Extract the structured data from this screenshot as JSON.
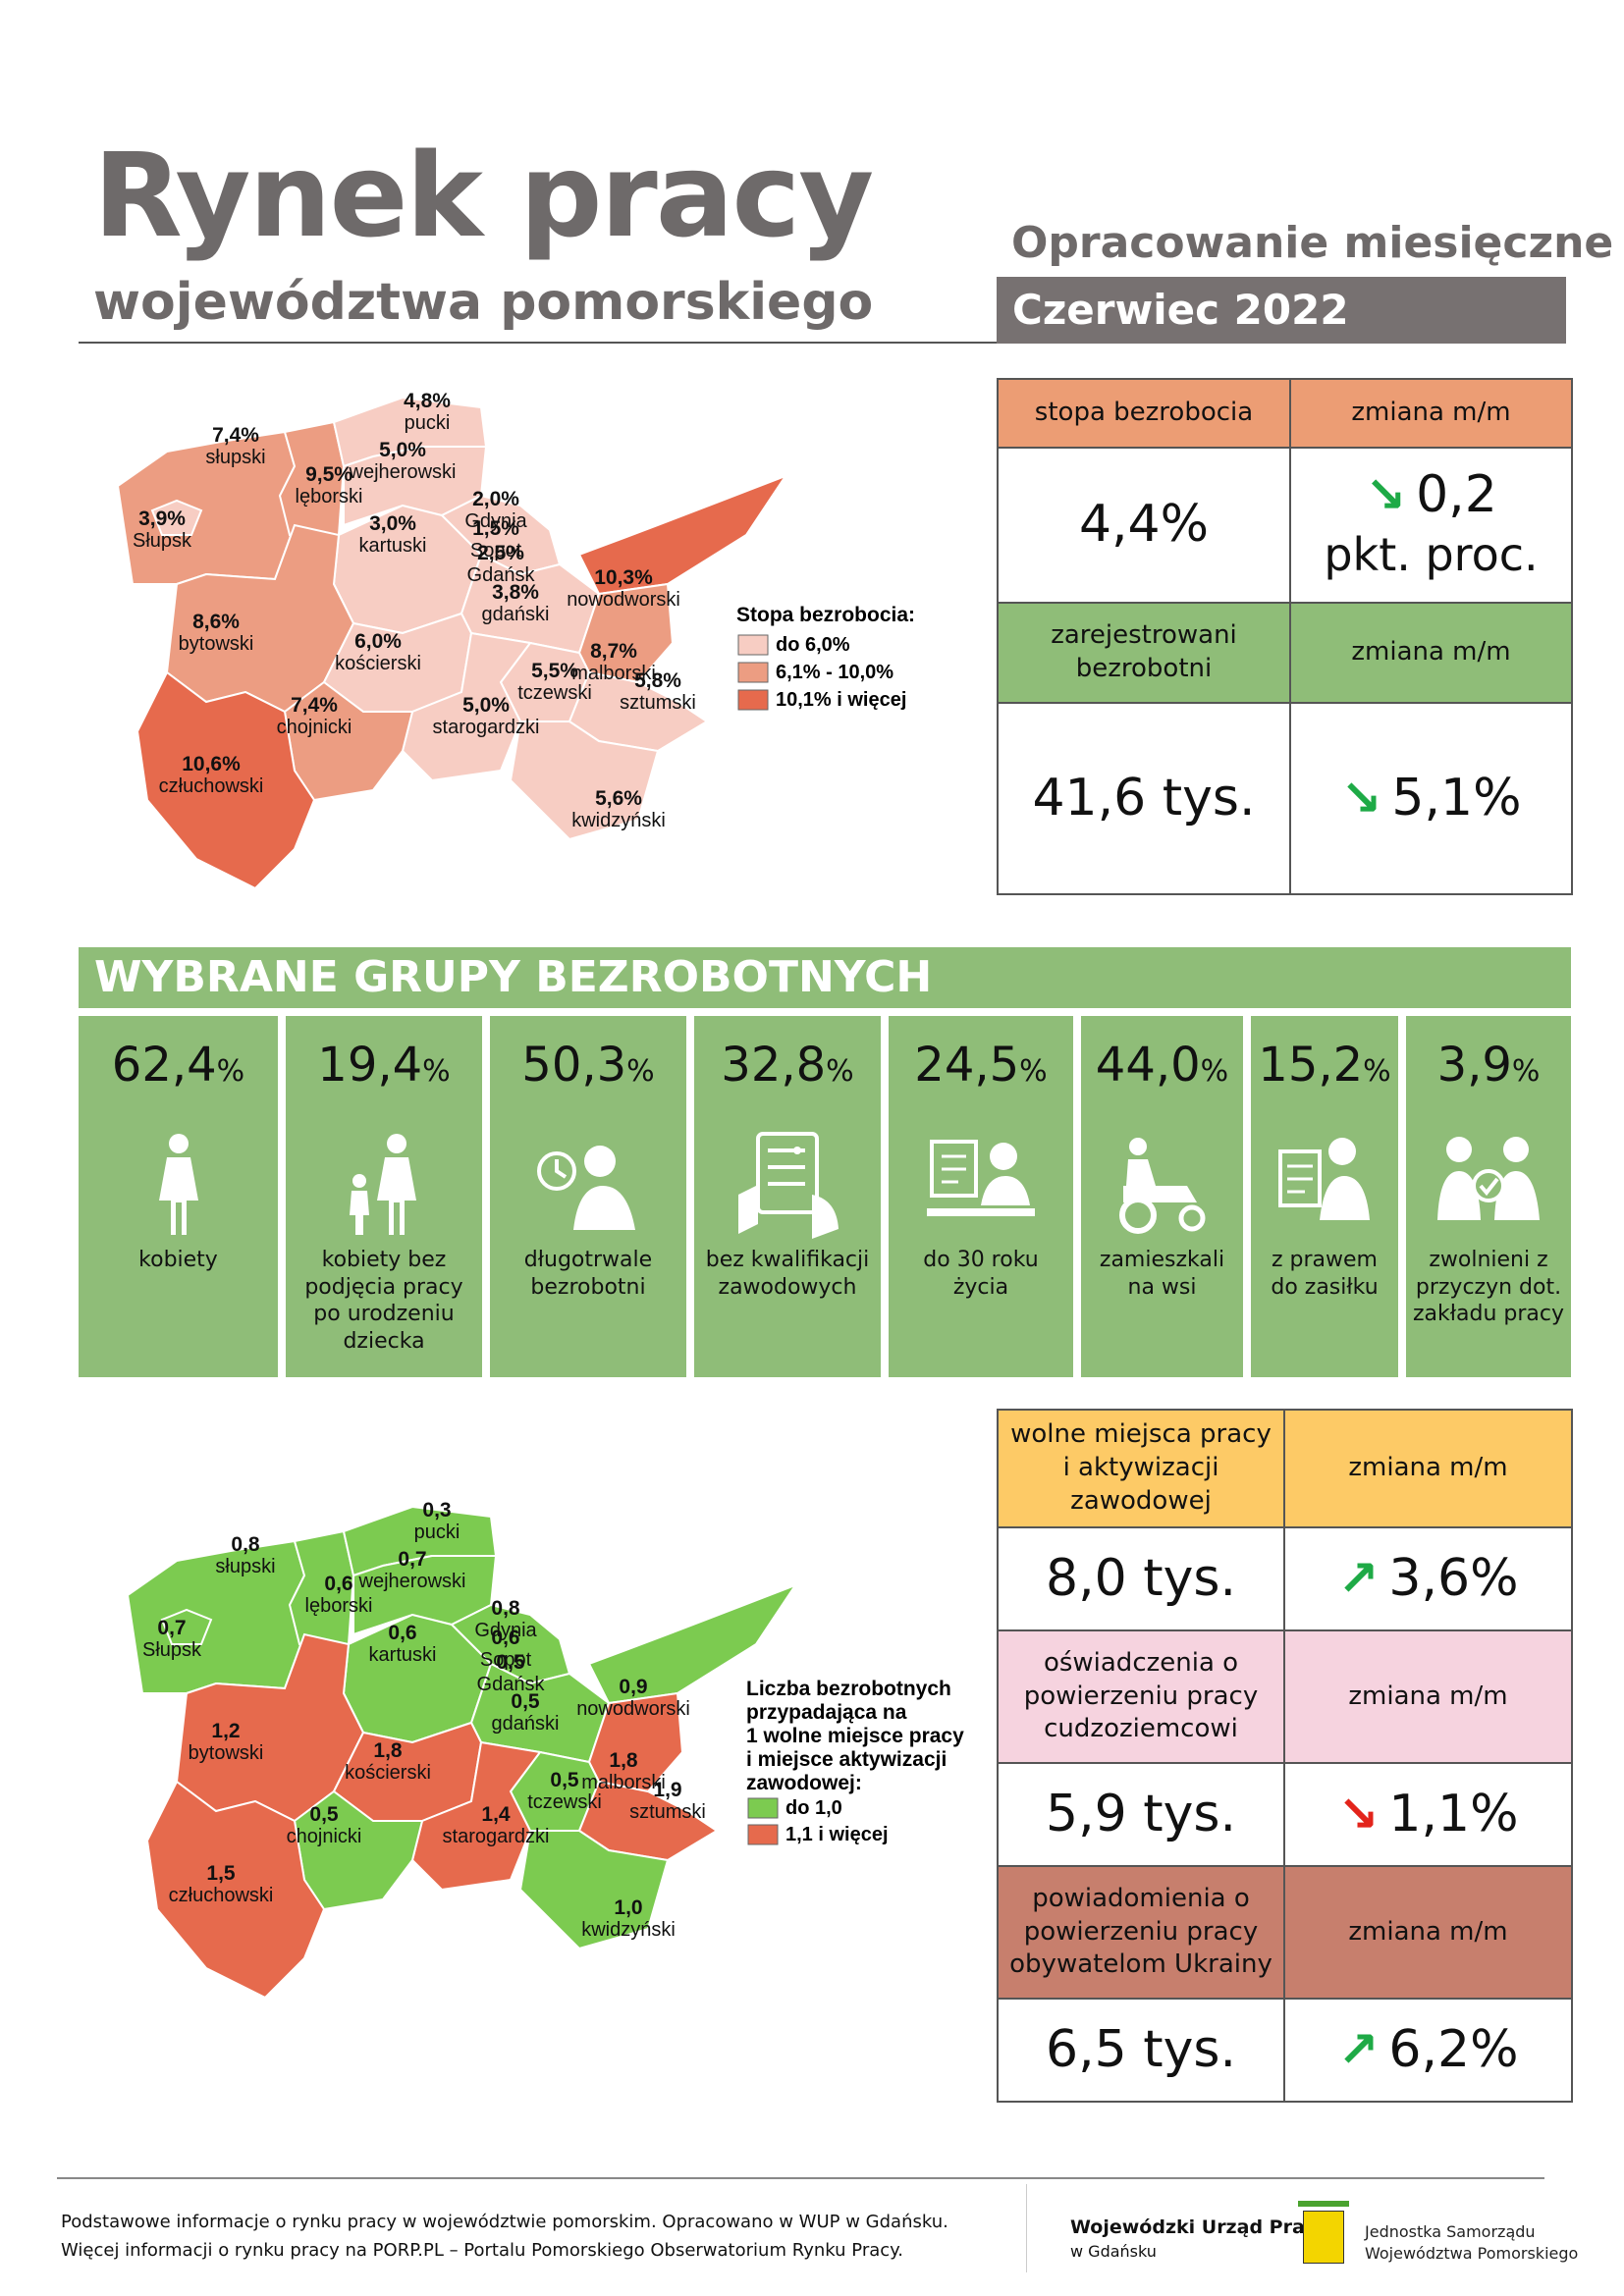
{
  "header": {
    "title": "Rynek pracy",
    "subtitle": "województwa pomorskiego",
    "report_type": "Opracowanie miesięczne",
    "period": "Czerwiec 2022"
  },
  "colors": {
    "orange_header": "#ec9d74",
    "green": "#8fbd78",
    "yellow": "#fdca66",
    "pink": "#f6d3df",
    "brown": "#c77f6d",
    "map_light": "#f7cdc3",
    "map_mid": "#ec9d82",
    "map_dark": "#e66a4d",
    "map_green": "#7ccb50",
    "map_red": "#e66a4d"
  },
  "unemployment": {
    "rate_label": "stopa bezrobocia",
    "change_label": "zmiana m/m",
    "rate_value": "4,4%",
    "rate_change": "0,2",
    "rate_change_unit": "pkt. proc.",
    "rate_change_dir": "down",
    "registered_label": "zarejestrowani bezrobotni",
    "registered_change_label": "zmiana m/m",
    "registered_value": "41,6 tys.",
    "registered_change": "5,1%",
    "registered_change_dir": "down"
  },
  "groups_title": "WYBRANE GRUPY BEZROBOTNYCH",
  "groups": [
    {
      "value": "62,4",
      "unit": "%",
      "label": "kobiety",
      "icon": "woman-icon"
    },
    {
      "value": "19,4",
      "unit": "%",
      "label": "kobiety bez podjęcia pracy po urodzeniu dziecka",
      "icon": "mother-child-icon"
    },
    {
      "value": "50,3",
      "unit": "%",
      "label": "długotrwale bezrobotni",
      "icon": "clock-person-icon"
    },
    {
      "value": "32,8",
      "unit": "%",
      "label": "bez kwalifikacji zawodowych",
      "icon": "checklist-hand-icon"
    },
    {
      "value": "24,5",
      "unit": "%",
      "label": "do 30 roku życia",
      "icon": "young-person-computer-icon"
    },
    {
      "value": "44,0",
      "unit": "%",
      "label": "zamieszkali na wsi",
      "icon": "tractor-icon"
    },
    {
      "value": "15,2",
      "unit": "%",
      "label": "z prawem do zasiłku",
      "icon": "benefit-document-icon"
    },
    {
      "value": "3,9",
      "unit": "%",
      "label": "zwolnieni z przyczyn dot. zakładu pracy",
      "icon": "dismissed-workers-icon"
    }
  ],
  "map1": {
    "legend_title": "Stopa bezrobocia:",
    "legend": [
      "do 6,0%",
      "6,1% - 10,0%",
      "10,1% i więcej"
    ],
    "labels": [
      {
        "value": "4,8%",
        "name": "pucki"
      },
      {
        "value": "7,4%",
        "name": "słupski"
      },
      {
        "value": "5,0%",
        "name": "wejherowski"
      },
      {
        "value": "9,5%",
        "name": "lęborski"
      },
      {
        "value": "3,9%",
        "name": "Słupsk"
      },
      {
        "value": "2,0%",
        "name": "Gdynia"
      },
      {
        "value": "1,5%",
        "name": "Sopot"
      },
      {
        "value": "2,5%",
        "name": "Gdańsk"
      },
      {
        "value": "3,0%",
        "name": "kartuski"
      },
      {
        "value": "10,3%",
        "name": "nowodworski"
      },
      {
        "value": "8,6%",
        "name": "bytowski"
      },
      {
        "value": "3,8%",
        "name": "gdański"
      },
      {
        "value": "6,0%",
        "name": "kościerski"
      },
      {
        "value": "8,7%",
        "name": "malborski"
      },
      {
        "value": "5,5%",
        "name": "tczewski"
      },
      {
        "value": "5,8%",
        "name": "sztumski"
      },
      {
        "value": "7,4%",
        "name": "chojnicki"
      },
      {
        "value": "5,0%",
        "name": "starogardzki"
      },
      {
        "value": "10,6%",
        "name": "człuchowski"
      },
      {
        "value": "5,6%",
        "name": "kwidzyński"
      }
    ]
  },
  "map2": {
    "legend_title_lines": [
      "Liczba bezrobotnych",
      "przypadająca na",
      "1 wolne miejsce pracy",
      "i miejsce aktywizacji",
      "zawodowej:"
    ],
    "legend": [
      "do 1,0",
      "1,1 i więcej"
    ],
    "labels": [
      {
        "value": "0,3",
        "name": "pucki"
      },
      {
        "value": "0,8",
        "name": "słupski"
      },
      {
        "value": "0,7",
        "name": "wejherowski"
      },
      {
        "value": "0,6",
        "name": "lęborski"
      },
      {
        "value": "0,7",
        "name": "Słupsk"
      },
      {
        "value": "0,8",
        "name": "Gdynia"
      },
      {
        "value": "0,6",
        "name": "Sopot"
      },
      {
        "value": "0,5",
        "name": "Gdańsk"
      },
      {
        "value": "0,6",
        "name": "kartuski"
      },
      {
        "value": "0,9",
        "name": "nowodworski"
      },
      {
        "value": "1,2",
        "name": "bytowski"
      },
      {
        "value": "0,5",
        "name": "gdański"
      },
      {
        "value": "1,8",
        "name": "kościerski"
      },
      {
        "value": "1,8",
        "name": "malborski"
      },
      {
        "value": "0,5",
        "name": "tczewski"
      },
      {
        "value": "1,9",
        "name": "sztumski"
      },
      {
        "value": "0,5",
        "name": "chojnicki"
      },
      {
        "value": "1,4",
        "name": "starogardzki"
      },
      {
        "value": "1,5",
        "name": "człuchowski"
      },
      {
        "value": "1,0",
        "name": "kwidzyński"
      }
    ]
  },
  "offers": {
    "vacancies_label": "wolne miejsca pracy i aktywizacji zawodowej",
    "change_label": "zmiana m/m",
    "vacancies_value": "8,0 tys.",
    "vacancies_change": "3,6%",
    "vacancies_dir": "up",
    "declarations_label": "oświadczenia o powierzeniu pracy cudzoziemcowi",
    "declarations_change_label": "zmiana m/m",
    "declarations_value": "5,9 tys.",
    "declarations_change": "1,1%",
    "declarations_dir": "down",
    "notifications_label": "powiadomienia o powierzeniu pracy obywatelom Ukrainy",
    "notifications_change_label": "zmiana m/m",
    "notifications_value": "6,5 tys.",
    "notifications_change": "6,2%",
    "notifications_dir": "up"
  },
  "footer": {
    "line1": "Podstawowe informacje o rynku pracy w województwie pomorskim. Opracowano w WUP w Gdańsku.",
    "line2": "Więcej informacji o rynku pracy na PORP.PL – Portalu Pomorskiego Obserwatorium Rynku Pracy.",
    "wup_name": "Wojewódzki Urząd Pracy",
    "wup_city": "w Gdańsku",
    "jst_line1": "Jednostka Samorządu",
    "jst_line2": "Województwa Pomorskiego"
  }
}
